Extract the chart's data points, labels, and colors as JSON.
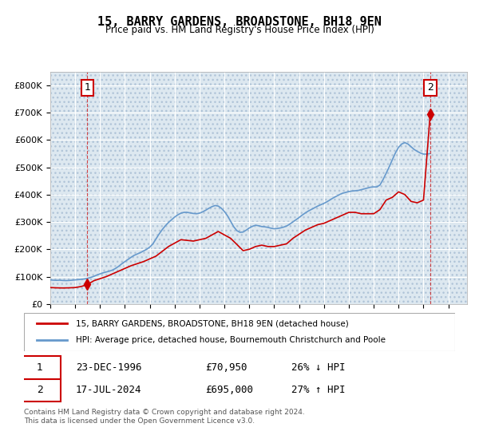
{
  "title": "15, BARRY GARDENS, BROADSTONE, BH18 9EN",
  "subtitle": "Price paid vs. HM Land Registry's House Price Index (HPI)",
  "footer": "Contains HM Land Registry data © Crown copyright and database right 2024.\nThis data is licensed under the Open Government Licence v3.0.",
  "legend_line1": "15, BARRY GARDENS, BROADSTONE, BH18 9EN (detached house)",
  "legend_line2": "HPI: Average price, detached house, Bournemouth Christchurch and Poole",
  "annotation1_label": "1",
  "annotation1_date": "23-DEC-1996",
  "annotation1_price": "£70,950",
  "annotation1_hpi": "26% ↓ HPI",
  "annotation2_label": "2",
  "annotation2_date": "17-JUL-2024",
  "annotation2_price": "£695,000",
  "annotation2_hpi": "27% ↑ HPI",
  "hpi_color": "#6699cc",
  "price_color": "#cc0000",
  "bg_color": "#dde8f0",
  "hatch_color": "#b0c4d8",
  "grid_color": "#ffffff",
  "annotation_box_color": "#cc0000",
  "ylim": [
    0,
    850000
  ],
  "yticks": [
    0,
    100000,
    200000,
    300000,
    400000,
    500000,
    600000,
    700000,
    800000
  ],
  "xlim_start": 1994.0,
  "xlim_end": 2027.5,
  "hpi_data": {
    "years": [
      1994.0,
      1994.25,
      1994.5,
      1994.75,
      1995.0,
      1995.25,
      1995.5,
      1995.75,
      1996.0,
      1996.25,
      1996.5,
      1996.75,
      1997.0,
      1997.25,
      1997.5,
      1997.75,
      1998.0,
      1998.25,
      1998.5,
      1998.75,
      1999.0,
      1999.25,
      1999.5,
      1999.75,
      2000.0,
      2000.25,
      2000.5,
      2000.75,
      2001.0,
      2001.25,
      2001.5,
      2001.75,
      2002.0,
      2002.25,
      2002.5,
      2002.75,
      2003.0,
      2003.25,
      2003.5,
      2003.75,
      2004.0,
      2004.25,
      2004.5,
      2004.75,
      2005.0,
      2005.25,
      2005.5,
      2005.75,
      2006.0,
      2006.25,
      2006.5,
      2006.75,
      2007.0,
      2007.25,
      2007.5,
      2007.75,
      2008.0,
      2008.25,
      2008.5,
      2008.75,
      2009.0,
      2009.25,
      2009.5,
      2009.75,
      2010.0,
      2010.25,
      2010.5,
      2010.75,
      2011.0,
      2011.25,
      2011.5,
      2011.75,
      2012.0,
      2012.25,
      2012.5,
      2012.75,
      2013.0,
      2013.25,
      2013.5,
      2013.75,
      2014.0,
      2014.25,
      2014.5,
      2014.75,
      2015.0,
      2015.25,
      2015.5,
      2015.75,
      2016.0,
      2016.25,
      2016.5,
      2016.75,
      2017.0,
      2017.25,
      2017.5,
      2017.75,
      2018.0,
      2018.25,
      2018.5,
      2018.75,
      2019.0,
      2019.25,
      2019.5,
      2019.75,
      2020.0,
      2020.25,
      2020.5,
      2020.75,
      2021.0,
      2021.25,
      2021.5,
      2021.75,
      2022.0,
      2022.25,
      2022.5,
      2022.75,
      2023.0,
      2023.25,
      2023.5,
      2023.75,
      2024.0,
      2024.25,
      2024.5
    ],
    "values": [
      88000,
      87000,
      86500,
      87000,
      86000,
      85500,
      86000,
      87000,
      88000,
      89000,
      90000,
      91500,
      94000,
      97000,
      101000,
      106000,
      110000,
      114000,
      117000,
      120000,
      124000,
      130000,
      138000,
      147000,
      155000,
      163000,
      171000,
      178000,
      183000,
      188000,
      194000,
      200000,
      208000,
      220000,
      238000,
      256000,
      272000,
      286000,
      298000,
      308000,
      318000,
      326000,
      332000,
      335000,
      335000,
      333000,
      331000,
      330000,
      332000,
      337000,
      343000,
      350000,
      356000,
      360000,
      358000,
      350000,
      338000,
      322000,
      302000,
      282000,
      268000,
      262000,
      263000,
      270000,
      278000,
      284000,
      288000,
      286000,
      283000,
      282000,
      280000,
      277000,
      275000,
      276000,
      278000,
      281000,
      285000,
      292000,
      300000,
      308000,
      316000,
      325000,
      333000,
      340000,
      346000,
      352000,
      358000,
      363000,
      368000,
      374000,
      381000,
      388000,
      394000,
      400000,
      405000,
      408000,
      411000,
      413000,
      414000,
      415000,
      418000,
      421000,
      424000,
      427000,
      428000,
      428000,
      435000,
      455000,
      478000,
      502000,
      528000,
      553000,
      573000,
      585000,
      590000,
      585000,
      575000,
      565000,
      558000,
      552000,
      548000,
      548000,
      550000
    ]
  },
  "price_data": {
    "years": [
      1996.98,
      2024.54
    ],
    "values": [
      70950,
      695000
    ]
  },
  "price_line_segments": {
    "x": [
      1994.0,
      1994.5,
      1995.0,
      1995.5,
      1996.0,
      1996.5,
      1996.98,
      1996.98,
      1997.5,
      1998.5,
      1999.5,
      2000.5,
      2001.5,
      2002.5,
      2003.5,
      2004.5,
      2005.5,
      2006.5,
      2007.5,
      2008.5,
      2009.5,
      2010.0,
      2010.5,
      2011.0,
      2011.5,
      2012.0,
      2012.5,
      2013.0,
      2013.5,
      2014.0,
      2014.5,
      2015.0,
      2015.5,
      2016.0,
      2016.5,
      2017.0,
      2017.5,
      2018.0,
      2018.5,
      2019.0,
      2019.5,
      2020.0,
      2020.5,
      2021.0,
      2021.5,
      2022.0,
      2022.5,
      2023.0,
      2023.5,
      2024.0,
      2024.54
    ],
    "y": [
      60000,
      59000,
      58500,
      59000,
      60000,
      64000,
      70950,
      70950,
      85000,
      100000,
      120000,
      140000,
      155000,
      175000,
      210000,
      235000,
      230000,
      240000,
      265000,
      240000,
      195000,
      200000,
      210000,
      215000,
      210000,
      210000,
      215000,
      220000,
      240000,
      255000,
      270000,
      280000,
      290000,
      295000,
      305000,
      315000,
      325000,
      335000,
      335000,
      330000,
      330000,
      330000,
      345000,
      380000,
      390000,
      410000,
      400000,
      375000,
      370000,
      380000,
      695000
    ]
  }
}
